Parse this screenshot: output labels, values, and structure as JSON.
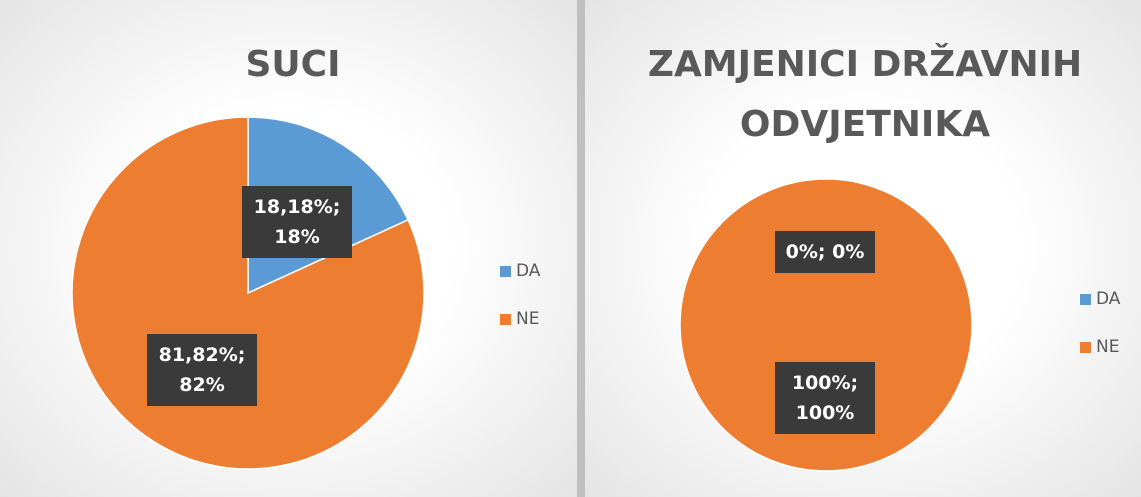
{
  "chart_data": [
    {
      "type": "pie",
      "title": "SUCI",
      "categories": [
        "DA",
        "NE"
      ],
      "values": [
        18.18,
        81.82
      ],
      "value_labels": [
        "18,18%; 18%",
        "81,82%; 82%"
      ],
      "colors": [
        "#5b9bd5",
        "#ed7d31"
      ],
      "legend": "right"
    },
    {
      "type": "pie",
      "title": "ZAMJENICI DRŽAVNIH ODVJETNIKA",
      "categories": [
        "DA",
        "NE"
      ],
      "values": [
        0,
        100
      ],
      "value_labels": [
        "0%; 0%",
        "100%; 100%"
      ],
      "colors": [
        "#5b9bd5",
        "#ed7d31"
      ],
      "legend": "right"
    }
  ]
}
